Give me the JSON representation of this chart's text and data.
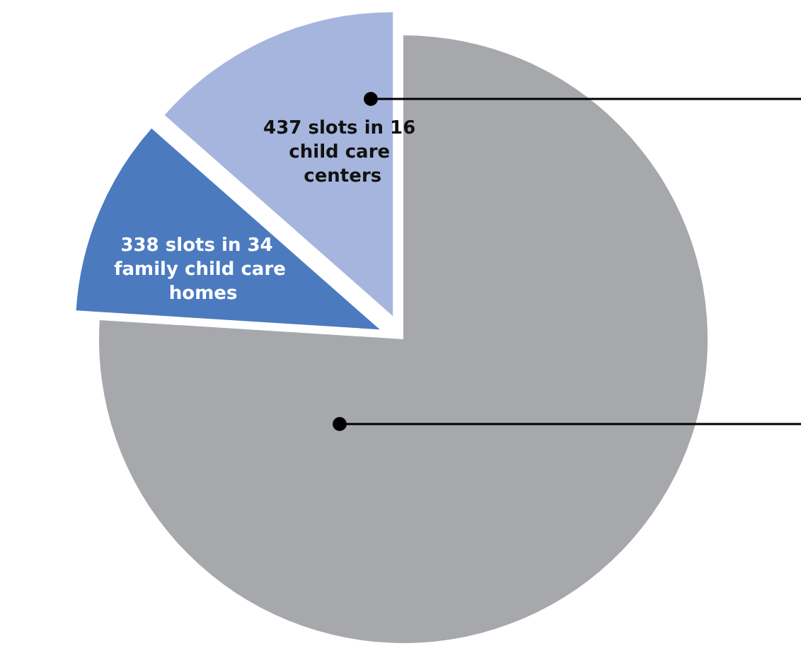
{
  "chart_data": {
    "type": "pie",
    "categories": [
      null,
      "338 slots in 34 family child care homes",
      "437 slots in 16 child care centers"
    ],
    "values": [
      76,
      10.5,
      13.5
    ],
    "colors": [
      "#a7a8ab",
      "#4b7abf",
      "#a6b5dd"
    ]
  }
}
